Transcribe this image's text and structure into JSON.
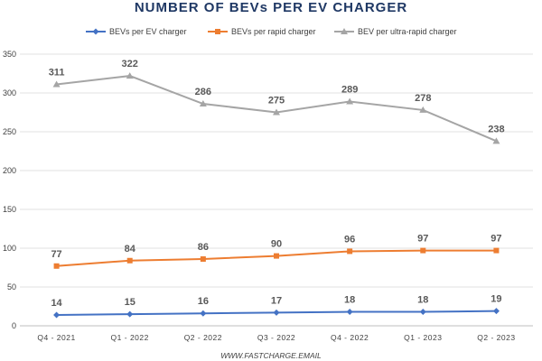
{
  "title": "NUMBER OF BEVs PER EV CHARGER",
  "footer": "WWW.FASTCHARGE.EMAIL",
  "chart_data": {
    "type": "line",
    "categories": [
      "Q4 - 2021",
      "Q1 - 2022",
      "Q2 - 2022",
      "Q3 - 2022",
      "Q4 - 2022",
      "Q1 - 2023",
      "Q2 - 2023"
    ],
    "ylim": [
      0,
      350
    ],
    "yticks": [
      0,
      50,
      100,
      150,
      200,
      250,
      300,
      350
    ],
    "grid": true,
    "legend": "top",
    "series": [
      {
        "name": "BEVs per EV charger",
        "values": [
          14,
          15,
          16,
          17,
          18,
          18,
          19
        ],
        "color": "#4472c4",
        "marker": "diamond"
      },
      {
        "name": "BEVs per rapid charger",
        "values": [
          77,
          84,
          86,
          90,
          96,
          97,
          97
        ],
        "color": "#ed7d31",
        "marker": "square"
      },
      {
        "name": "BEV per ultra-rapid charger",
        "values": [
          311,
          322,
          286,
          275,
          289,
          278,
          238
        ],
        "color": "#a5a5a5",
        "marker": "triangle"
      }
    ]
  }
}
